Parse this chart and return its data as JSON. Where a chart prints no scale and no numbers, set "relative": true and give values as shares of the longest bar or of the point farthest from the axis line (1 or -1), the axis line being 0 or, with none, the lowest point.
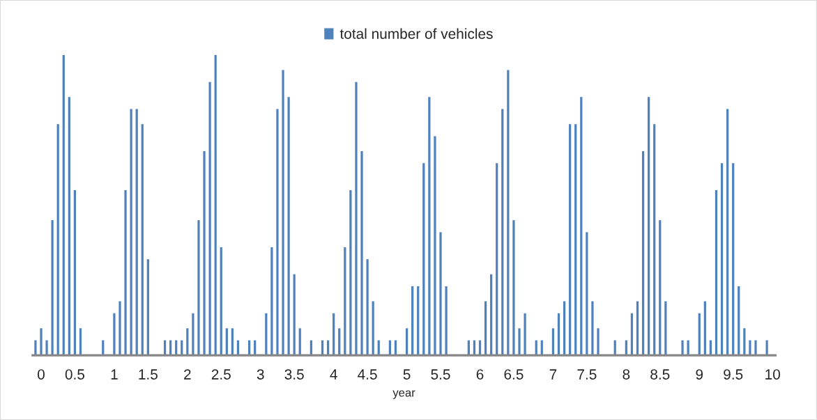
{
  "chart_data": {
    "type": "bar",
    "relative": true,
    "xlabel": "year",
    "legend": "top",
    "grid": false,
    "categories": [
      null,
      "0",
      null,
      null,
      null,
      null,
      null,
      "0.5",
      null,
      null,
      null,
      null,
      null,
      null,
      "1",
      null,
      null,
      null,
      null,
      null,
      "1.5",
      null,
      null,
      null,
      null,
      null,
      null,
      "2",
      null,
      null,
      null,
      null,
      null,
      "2.5",
      null,
      null,
      null,
      null,
      null,
      null,
      "3",
      null,
      null,
      null,
      null,
      null,
      "3.5",
      null,
      null,
      null,
      null,
      null,
      null,
      "4",
      null,
      null,
      null,
      null,
      null,
      "4.5",
      null,
      null,
      null,
      null,
      null,
      null,
      "5",
      null,
      null,
      null,
      null,
      null,
      "5.5",
      null,
      null,
      null,
      null,
      null,
      null,
      "6",
      null,
      null,
      null,
      null,
      null,
      "6.5",
      null,
      null,
      null,
      null,
      null,
      null,
      "7",
      null,
      null,
      null,
      null,
      null,
      "7.5",
      null,
      null,
      null,
      null,
      null,
      null,
      "8",
      null,
      null,
      null,
      null,
      null,
      "8.5",
      null,
      null,
      null,
      null,
      null,
      null,
      "9",
      null,
      null,
      null,
      null,
      null,
      "9.5",
      null,
      null,
      null,
      null,
      null,
      null,
      "10"
    ],
    "series": [
      {
        "name": "total number of vehicles",
        "color": "#4f81bd",
        "values": [
          0.05,
          0.09,
          0.05,
          0.45,
          0.77,
          1,
          0.86,
          0.55,
          0.09,
          null,
          null,
          null,
          0.05,
          null,
          0.14,
          0.18,
          0.55,
          0.82,
          0.82,
          0.77,
          0.32,
          null,
          null,
          0.05,
          0.05,
          0.05,
          0.05,
          0.09,
          0.14,
          0.45,
          0.68,
          0.91,
          1,
          0.36,
          0.09,
          0.09,
          0.05,
          null,
          0.05,
          0.05,
          null,
          0.14,
          0.36,
          0.82,
          0.95,
          0.86,
          0.27,
          0.09,
          null,
          0.05,
          null,
          0.05,
          0.05,
          0.14,
          0.09,
          0.36,
          0.55,
          0.91,
          0.68,
          0.32,
          0.18,
          0.05,
          null,
          0.05,
          0.05,
          null,
          0.09,
          0.23,
          0.23,
          0.64,
          0.86,
          0.73,
          0.41,
          0.23,
          null,
          null,
          null,
          0.05,
          0.05,
          0.05,
          0.18,
          0.27,
          0.64,
          0.82,
          0.95,
          0.45,
          0.09,
          0.14,
          null,
          0.05,
          0.05,
          null,
          0.09,
          0.14,
          0.18,
          0.77,
          0.77,
          0.86,
          0.41,
          0.18,
          0.09,
          null,
          null,
          0.05,
          null,
          0.05,
          0.14,
          0.18,
          0.68,
          0.86,
          0.77,
          0.45,
          0.18,
          null,
          null,
          0.05,
          0.05,
          null,
          0.14,
          0.18,
          0.05,
          0.55,
          0.64,
          0.82,
          0.64,
          0.23,
          0.09,
          0.05,
          0.05,
          null,
          0.05,
          null
        ]
      }
    ]
  }
}
